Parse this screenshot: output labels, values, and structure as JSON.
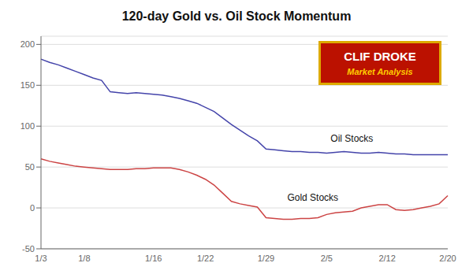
{
  "chart_data": {
    "type": "line",
    "title": "120-day Gold vs. Oil Stock Momentum",
    "categories": [
      "1/3",
      null,
      null,
      null,
      null,
      "1/8",
      null,
      null,
      null,
      null,
      null,
      null,
      null,
      "1/16",
      null,
      null,
      null,
      null,
      null,
      "1/22",
      null,
      null,
      null,
      null,
      null,
      null,
      "1/29",
      null,
      null,
      null,
      null,
      null,
      null,
      "2/5",
      null,
      null,
      null,
      null,
      null,
      null,
      "2/12",
      null,
      null,
      null,
      null,
      null,
      null,
      "2/20"
    ],
    "series": [
      {
        "name": "Oil Stocks",
        "color": "#4444aa",
        "values": [
          182,
          178,
          175,
          171,
          167,
          163,
          159,
          156,
          142,
          141,
          140,
          141,
          140,
          139,
          138,
          136,
          134,
          131,
          128,
          123,
          118,
          110,
          102,
          95,
          88,
          82,
          72,
          71,
          70,
          69,
          69,
          68,
          68,
          67,
          68,
          69,
          68,
          67,
          67,
          68,
          67,
          66,
          66,
          65,
          65,
          65,
          65,
          65
        ]
      },
      {
        "name": "Gold Stocks",
        "color": "#cc4444",
        "values": [
          60,
          57,
          55,
          53,
          51,
          50,
          49,
          48,
          47,
          47,
          47,
          48,
          48,
          49,
          49,
          49,
          47,
          44,
          40,
          35,
          28,
          18,
          8,
          5,
          3,
          1,
          -12,
          -13,
          -14,
          -14,
          -13,
          -13,
          -12,
          -8,
          -6,
          -5,
          -4,
          0,
          2,
          4,
          4,
          -2,
          -3,
          -2,
          0,
          2,
          5,
          15
        ]
      }
    ],
    "ylim": [
      -50,
      210
    ],
    "yticks": [
      -50,
      0,
      50,
      100,
      150,
      200
    ],
    "grid": true,
    "annotations": [
      {
        "text": "Oil Stocks",
        "x": 33,
        "y": 85
      },
      {
        "text": "Gold Stocks",
        "x": 28,
        "y": 13
      },
      {
        "text": "CLIF DROKE"
      },
      {
        "text": "Market Analysis"
      }
    ]
  }
}
